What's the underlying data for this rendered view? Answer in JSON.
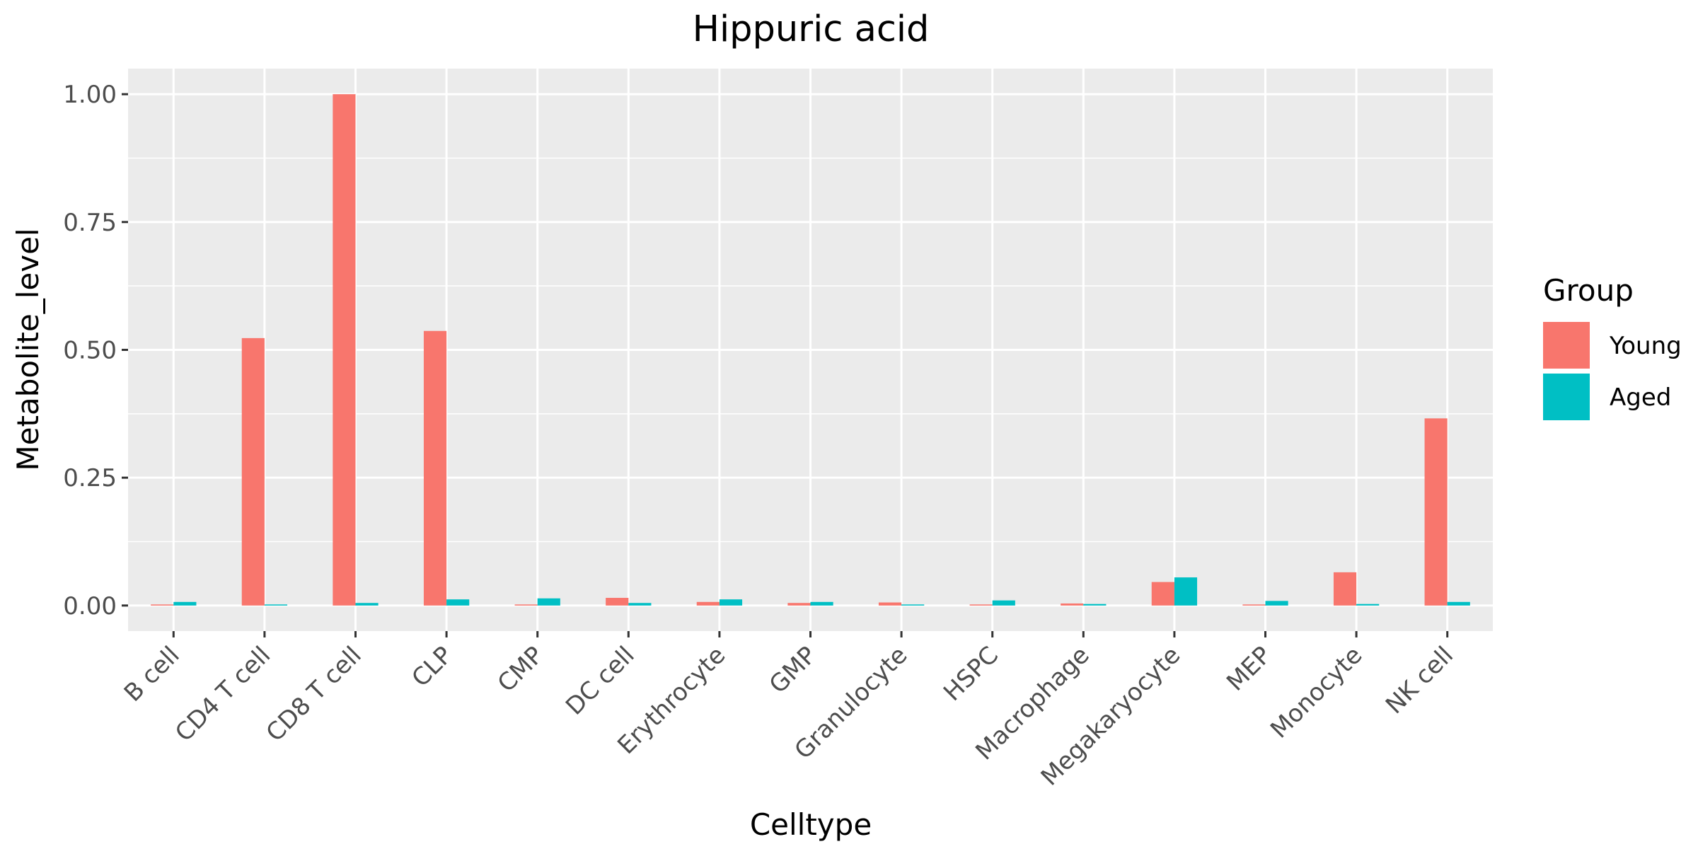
{
  "chart_data": {
    "type": "bar",
    "title": "Hippuric acid",
    "xlabel": "Celltype",
    "ylabel": "Metabolite_level",
    "ylim": [
      -0.05,
      1.05
    ],
    "yticks": [
      0.0,
      0.25,
      0.5,
      0.75,
      1.0
    ],
    "ytick_labels": [
      "0.00",
      "0.25",
      "0.50",
      "0.75",
      "1.00"
    ],
    "grid": true,
    "legend": {
      "title": "Group",
      "position": "right"
    },
    "categories": [
      "B cell",
      "CD4 T cell",
      "CD8 T cell",
      "CLP",
      "CMP",
      "DC cell",
      "Erythrocyte",
      "GMP",
      "Granulocyte",
      "HSPC",
      "Macrophage",
      "Megakaryocyte",
      "MEP",
      "Monocyte",
      "NK cell"
    ],
    "series": [
      {
        "name": "Young",
        "color": "#F8766D",
        "values": [
          0.002,
          0.523,
          1.0,
          0.537,
          0.0,
          0.015,
          0.007,
          0.005,
          0.006,
          0.002,
          0.004,
          0.046,
          0.002,
          0.065,
          0.366
        ]
      },
      {
        "name": "Aged",
        "color": "#00BFC4",
        "values": [
          0.007,
          0.0,
          0.005,
          0.012,
          0.014,
          0.005,
          0.012,
          0.007,
          0.002,
          0.01,
          0.003,
          0.055,
          0.009,
          0.003,
          0.007
        ]
      }
    ]
  }
}
